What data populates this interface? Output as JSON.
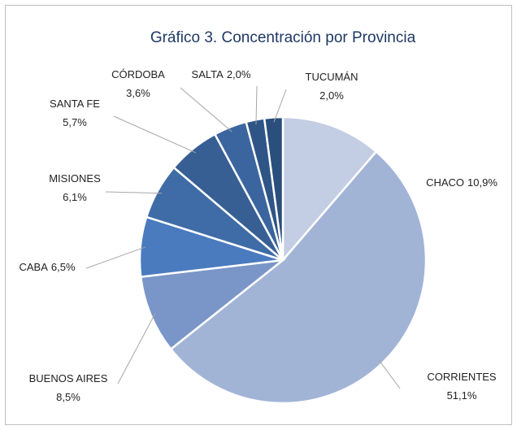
{
  "chart_data": {
    "type": "pie",
    "title": "Gráfico 3. Concentración por Provincia",
    "categories": [
      "CHACO",
      "CORRIENTES",
      "BUENOS AIRES",
      "CABA",
      "MISIONES",
      "SANTA FE",
      "CÓRDOBA",
      "SALTA",
      "TUCUMÁN"
    ],
    "values": [
      10.9,
      51.1,
      8.5,
      6.5,
      6.1,
      5.7,
      3.6,
      2.0,
      2.0
    ],
    "value_labels": [
      "10,9%",
      "51,1%",
      "8,5%",
      "6,5%",
      "6,1%",
      "5,7%",
      "3,6%",
      "2,0%",
      "2,0%"
    ],
    "colors": [
      "#c3cde3",
      "#a2b4d6",
      "#7a96c8",
      "#4a7bbf",
      "#3f6ca6",
      "#375f94",
      "#3b659e",
      "#2f5587",
      "#2b4f7d"
    ]
  }
}
